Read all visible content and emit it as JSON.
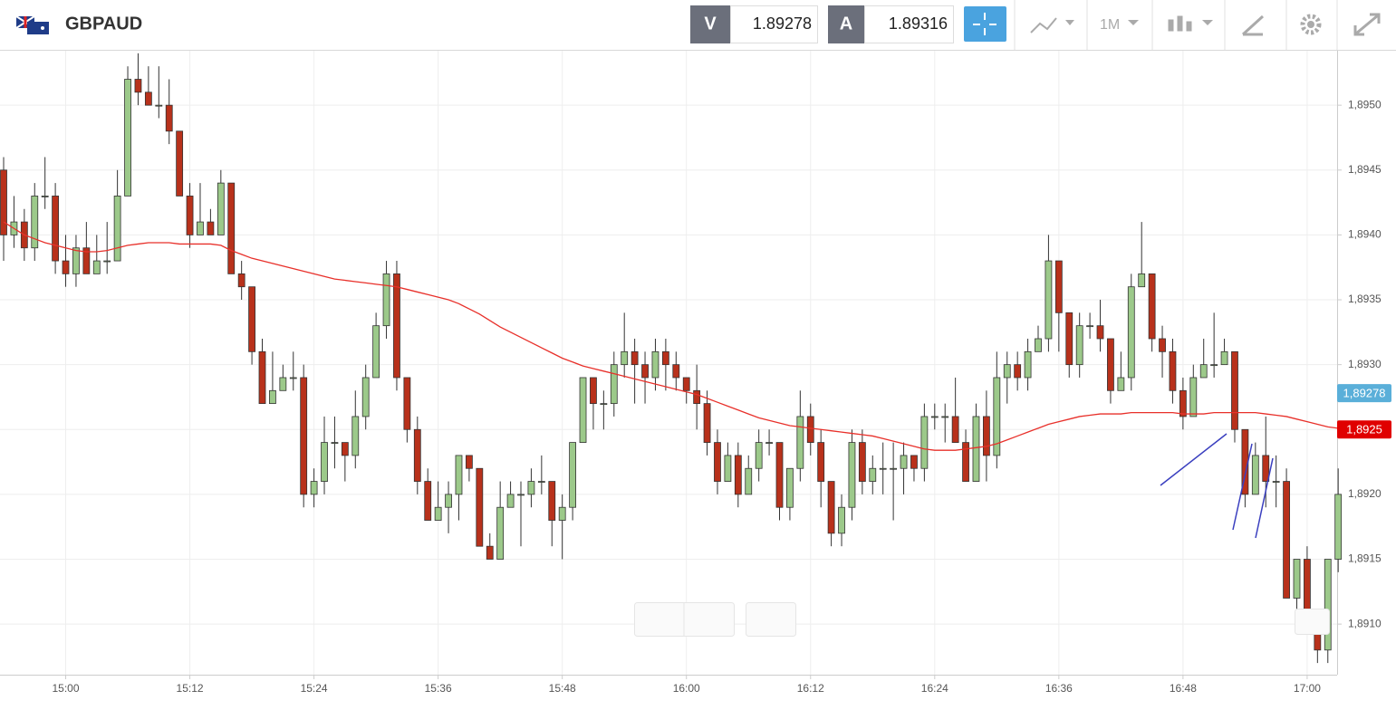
{
  "header": {
    "symbol": "GBPAUD",
    "bid_label": "V",
    "bid": "1.89278",
    "ask_label": "A",
    "ask": "1.89316",
    "timeframe": "1M"
  },
  "chart_data": {
    "type": "candlestick",
    "categories": [
      null,
      null,
      null,
      null,
      null,
      null,
      "15:00",
      null,
      null,
      null,
      null,
      null,
      null,
      null,
      null,
      null,
      null,
      null,
      "15:12",
      null,
      null,
      null,
      null,
      null,
      null,
      null,
      null,
      null,
      null,
      null,
      "15:24",
      null,
      null,
      null,
      null,
      null,
      null,
      null,
      null,
      null,
      null,
      null,
      "15:36",
      null,
      null,
      null,
      null,
      null,
      null,
      null,
      null,
      null,
      null,
      null,
      "15:48",
      null,
      null,
      null,
      null,
      null,
      null,
      null,
      null,
      null,
      null,
      null,
      "16:00",
      null,
      null,
      null,
      null,
      null,
      null,
      null,
      null,
      null,
      null,
      null,
      "16:12",
      null,
      null,
      null,
      null,
      null,
      null,
      null,
      null,
      null,
      null,
      null,
      "16:24",
      null,
      null,
      null,
      null,
      null,
      null,
      null,
      null,
      null,
      null,
      null,
      "16:36",
      null,
      null,
      null,
      null,
      null,
      null,
      null,
      null,
      null,
      null,
      null,
      "16:48",
      null,
      null,
      null,
      null,
      null,
      null,
      null,
      null,
      null,
      null,
      null,
      "17:00",
      null,
      null,
      null
    ],
    "open": [
      1.8945,
      1.894,
      1.8941,
      1.8939,
      1.8943,
      1.8943,
      1.8938,
      1.8937,
      1.8939,
      1.8937,
      1.8938,
      1.8938,
      1.8943,
      1.8952,
      1.8951,
      1.895,
      1.895,
      1.8948,
      1.8943,
      1.894,
      1.8941,
      1.894,
      1.8944,
      1.8937,
      1.8936,
      1.8931,
      1.8927,
      1.8928,
      1.8929,
      1.8929,
      1.892,
      1.8921,
      1.8924,
      1.8924,
      1.8923,
      1.8926,
      1.8929,
      1.8933,
      1.8937,
      1.8929,
      1.8925,
      1.8921,
      1.8918,
      1.8919,
      1.892,
      1.8923,
      1.8922,
      1.8916,
      1.8915,
      1.8919,
      1.892,
      1.892,
      1.8921,
      1.8921,
      1.8918,
      1.8919,
      1.8924,
      1.8929,
      1.8927,
      1.8927,
      1.893,
      1.8931,
      1.893,
      1.8929,
      1.8931,
      1.893,
      1.8929,
      1.8928,
      1.8927,
      1.8924,
      1.8921,
      1.8923,
      1.892,
      1.8922,
      1.8924,
      1.8924,
      1.8919,
      1.8922,
      1.8926,
      1.8924,
      1.8921,
      1.8917,
      1.8919,
      1.8924,
      1.8921,
      1.8922,
      1.8922,
      1.8922,
      1.8923,
      1.8922,
      1.8926,
      1.8926,
      1.8926,
      1.8924,
      1.8921,
      1.8926,
      1.8923,
      1.8929,
      1.893,
      1.8929,
      1.8931,
      1.8932,
      1.8938,
      1.8934,
      1.893,
      1.8933,
      1.8933,
      1.8932,
      1.8928,
      1.8929,
      1.8936,
      1.8937,
      1.8932,
      1.8931,
      1.8928,
      1.8926,
      1.8929,
      1.893,
      1.893,
      1.8931,
      1.8925,
      1.892,
      1.8923,
      1.8921,
      1.8921,
      1.8912,
      1.8915,
      1.8911,
      1.8908,
      1.8915
    ],
    "high": [
      1.8946,
      1.8943,
      1.8942,
      1.8944,
      1.8946,
      1.8944,
      1.894,
      1.894,
      1.8941,
      1.894,
      1.8941,
      1.8945,
      1.8953,
      1.8954,
      1.8953,
      1.8953,
      1.8952,
      1.8948,
      1.8944,
      1.8944,
      1.8942,
      1.8945,
      1.8944,
      1.8938,
      1.8936,
      1.8932,
      1.8931,
      1.893,
      1.8931,
      1.893,
      1.8922,
      1.8926,
      1.8926,
      1.8924,
      1.8928,
      1.893,
      1.8934,
      1.8938,
      1.8938,
      1.8929,
      1.8926,
      1.8922,
      1.8921,
      1.8921,
      1.8923,
      1.8923,
      1.8922,
      1.8917,
      1.8921,
      1.8921,
      1.8921,
      1.8922,
      1.8923,
      1.8921,
      1.892,
      1.8924,
      1.8929,
      1.8929,
      1.8928,
      1.8931,
      1.8934,
      1.8932,
      1.8931,
      1.8932,
      1.8932,
      1.8931,
      1.8929,
      1.893,
      1.8928,
      1.8925,
      1.8924,
      1.8924,
      1.8923,
      1.8925,
      1.8925,
      1.8924,
      1.8922,
      1.8928,
      1.8927,
      1.8925,
      1.8921,
      1.892,
      1.8925,
      1.8925,
      1.8923,
      1.8924,
      1.8924,
      1.8924,
      1.8923,
      1.8927,
      1.8927,
      1.8927,
      1.8929,
      1.8925,
      1.8927,
      1.8928,
      1.8931,
      1.8931,
      1.8931,
      1.8932,
      1.8933,
      1.894,
      1.8938,
      1.8934,
      1.8934,
      1.8934,
      1.8935,
      1.8932,
      1.8931,
      1.8937,
      1.8941,
      1.8937,
      1.8933,
      1.8932,
      1.8929,
      1.893,
      1.8932,
      1.8934,
      1.8932,
      1.8931,
      1.8925,
      1.8924,
      1.8926,
      1.8923,
      1.8922,
      1.8915,
      1.8916,
      1.8911,
      1.8915,
      1.8922
    ],
    "low": [
      1.8938,
      1.8939,
      1.8938,
      1.8938,
      1.8942,
      1.8937,
      1.8936,
      1.8936,
      1.8937,
      1.8937,
      1.8937,
      1.8938,
      1.8943,
      1.895,
      1.895,
      1.8949,
      1.8947,
      1.8943,
      1.8939,
      1.894,
      1.894,
      1.894,
      1.8937,
      1.8935,
      1.893,
      1.8927,
      1.8927,
      1.8928,
      1.8928,
      1.8919,
      1.8919,
      1.892,
      1.8922,
      1.8921,
      1.8922,
      1.8925,
      1.8929,
      1.8932,
      1.8928,
      1.8924,
      1.892,
      1.8918,
      1.8918,
      1.8917,
      1.8918,
      1.8921,
      1.8916,
      1.8915,
      1.8915,
      1.8919,
      1.8916,
      1.8919,
      1.892,
      1.8916,
      1.8915,
      1.8918,
      1.8924,
      1.8925,
      1.8925,
      1.8926,
      1.8929,
      1.8927,
      1.8927,
      1.8928,
      1.8928,
      1.8928,
      1.8927,
      1.8925,
      1.8923,
      1.892,
      1.8921,
      1.8919,
      1.892,
      1.8921,
      1.8923,
      1.8918,
      1.8918,
      1.8921,
      1.8923,
      1.8919,
      1.8916,
      1.8916,
      1.8918,
      1.892,
      1.892,
      1.892,
      1.8918,
      1.892,
      1.8921,
      1.8921,
      1.8925,
      1.8924,
      1.8924,
      1.8921,
      1.8921,
      1.8921,
      1.8922,
      1.8927,
      1.8928,
      1.8928,
      1.8931,
      1.8931,
      1.8931,
      1.8929,
      1.8929,
      1.8932,
      1.8931,
      1.8927,
      1.8928,
      1.8928,
      1.8936,
      1.8931,
      1.8929,
      1.8927,
      1.8925,
      1.8926,
      1.8929,
      1.8929,
      1.893,
      1.8924,
      1.8919,
      1.892,
      1.8919,
      1.8919,
      1.8912,
      1.8911,
      1.8911,
      1.8907,
      1.8907,
      1.8914
    ],
    "close": [
      1.894,
      1.8941,
      1.8939,
      1.8943,
      1.8943,
      1.8938,
      1.8937,
      1.8939,
      1.8937,
      1.8938,
      1.8938,
      1.8943,
      1.8952,
      1.8951,
      1.895,
      1.895,
      1.8948,
      1.8943,
      1.894,
      1.8941,
      1.894,
      1.8944,
      1.8937,
      1.8936,
      1.8931,
      1.8927,
      1.8928,
      1.8929,
      1.8929,
      1.892,
      1.8921,
      1.8924,
      1.8924,
      1.8923,
      1.8926,
      1.8929,
      1.8933,
      1.8937,
      1.8929,
      1.8925,
      1.8921,
      1.8918,
      1.8919,
      1.892,
      1.8923,
      1.8922,
      1.8916,
      1.8915,
      1.8919,
      1.892,
      1.892,
      1.8921,
      1.8921,
      1.8918,
      1.8919,
      1.8924,
      1.8929,
      1.8927,
      1.8927,
      1.893,
      1.8931,
      1.893,
      1.8929,
      1.8931,
      1.893,
      1.8929,
      1.8928,
      1.8927,
      1.8924,
      1.8921,
      1.8923,
      1.892,
      1.8922,
      1.8924,
      1.8924,
      1.8919,
      1.8922,
      1.8926,
      1.8924,
      1.8921,
      1.8917,
      1.8919,
      1.8924,
      1.8921,
      1.8922,
      1.8922,
      1.8922,
      1.8923,
      1.8922,
      1.8926,
      1.8926,
      1.8926,
      1.8924,
      1.8921,
      1.8926,
      1.8923,
      1.8929,
      1.893,
      1.8929,
      1.8931,
      1.8932,
      1.8938,
      1.8934,
      1.893,
      1.8933,
      1.8933,
      1.8932,
      1.8928,
      1.8929,
      1.8936,
      1.8937,
      1.8932,
      1.8931,
      1.8928,
      1.8926,
      1.8929,
      1.893,
      1.893,
      1.8931,
      1.8925,
      1.892,
      1.8923,
      1.8921,
      1.8921,
      1.8912,
      1.8915,
      1.8911,
      1.8908,
      1.8915,
      1.892
    ],
    "up_color": "#9cc98a",
    "down_color": "#b8311b",
    "moving_average": {
      "color": "#e8302a",
      "values": [
        1.8941,
        1.89405,
        1.894,
        1.89397,
        1.89394,
        1.89392,
        1.8939,
        1.89388,
        1.89387,
        1.89387,
        1.89388,
        1.8939,
        1.89392,
        1.89393,
        1.89394,
        1.89394,
        1.89394,
        1.89393,
        1.89393,
        1.89393,
        1.89393,
        1.89392,
        1.89388,
        1.89385,
        1.89382,
        1.8938,
        1.89378,
        1.89376,
        1.89374,
        1.89372,
        1.8937,
        1.89368,
        1.89366,
        1.89365,
        1.89364,
        1.89363,
        1.89362,
        1.89361,
        1.8936,
        1.89358,
        1.89356,
        1.89354,
        1.89352,
        1.8935,
        1.89347,
        1.89343,
        1.89339,
        1.89334,
        1.89329,
        1.89325,
        1.89321,
        1.89317,
        1.89313,
        1.89309,
        1.89305,
        1.89302,
        1.89299,
        1.89297,
        1.89295,
        1.89293,
        1.89291,
        1.89289,
        1.89287,
        1.89285,
        1.89283,
        1.89281,
        1.89279,
        1.89277,
        1.89274,
        1.89271,
        1.89268,
        1.89265,
        1.89262,
        1.89259,
        1.89257,
        1.89255,
        1.89253,
        1.89252,
        1.89251,
        1.8925,
        1.89249,
        1.89248,
        1.89247,
        1.89246,
        1.89245,
        1.89243,
        1.89241,
        1.89239,
        1.89237,
        1.89235,
        1.89234,
        1.89234,
        1.89234,
        1.89235,
        1.89236,
        1.89237,
        1.89239,
        1.89242,
        1.89245,
        1.89248,
        1.89251,
        1.89254,
        1.89256,
        1.89258,
        1.8926,
        1.89261,
        1.89262,
        1.89262,
        1.89262,
        1.89263,
        1.89263,
        1.89263,
        1.89263,
        1.89263,
        1.89262,
        1.89262,
        1.89262,
        1.89263,
        1.89263,
        1.89263,
        1.89263,
        1.89263,
        1.89262,
        1.89261,
        1.8926,
        1.89258,
        1.89256,
        1.89254,
        1.89252,
        1.89251
      ]
    },
    "ylim": [
      1.89061,
      1.89542
    ],
    "yticks": [
      {
        "value": 1.891,
        "label": "1,8910"
      },
      {
        "value": 1.8915,
        "label": "1,8915"
      },
      {
        "value": 1.892,
        "label": "1,8920"
      },
      {
        "value": 1.8925,
        "label": "1,8925"
      },
      {
        "value": 1.893,
        "label": "1,8930"
      },
      {
        "value": 1.8935,
        "label": "1,8935"
      },
      {
        "value": 1.894,
        "label": "1,8940"
      },
      {
        "value": 1.8945,
        "label": "1,8945"
      },
      {
        "value": 1.895,
        "label": "1,8950"
      }
    ],
    "grid": true,
    "price_tags": [
      {
        "value": 1.89278,
        "label": "1,89278",
        "color": "#5aafd9"
      },
      {
        "value": 1.8925,
        "label": "1,8925",
        "color": "#e00000"
      }
    ]
  }
}
